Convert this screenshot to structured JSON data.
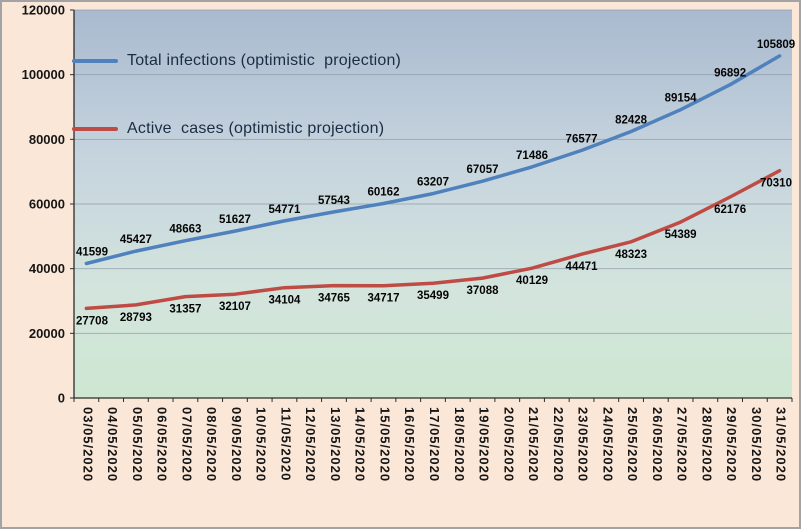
{
  "chart_data": {
    "type": "line",
    "title": "",
    "categories": [
      "03/05/2020",
      "04/05/2020",
      "05/05/2020",
      "06/05/2020",
      "07/05/2020",
      "08/05/2020",
      "09/05/2020",
      "10/05/2020",
      "11/05/2020",
      "12/05/2020",
      "13/05/2020",
      "14/05/2020",
      "15/05/2020",
      "16/05/2020",
      "17/05/2020",
      "18/05/2020",
      "19/05/2020",
      "20/05/2020",
      "21/05/2020",
      "22/05/2020",
      "23/05/2020",
      "24/05/2020",
      "25/05/2020",
      "26/05/2020",
      "27/05/2020",
      "28/05/2020",
      "29/05/2020",
      "30/05/2020",
      "31/05/2020"
    ],
    "label_indices": [
      0,
      2,
      4,
      6,
      8,
      10,
      12,
      14,
      16,
      18,
      20,
      22,
      24,
      26,
      28
    ],
    "series": [
      {
        "name": "Total infections (optimistic  projection)",
        "slug": "total-infections",
        "color": "#4f81bd",
        "label_position": "above",
        "values": [
          41599,
          45427,
          48663,
          51627,
          54771,
          57543,
          60162,
          63207,
          67057,
          71486,
          76577,
          82428,
          89154,
          96892,
          105809
        ]
      },
      {
        "name": "Active  cases (optimistic projection)",
        "slug": "active-cases",
        "color": "#bf4b45",
        "label_position": "below",
        "values": [
          27708,
          28793,
          31357,
          32107,
          34104,
          34765,
          34717,
          35499,
          37088,
          40129,
          44471,
          48323,
          54389,
          62176,
          70310
        ]
      }
    ],
    "ylim": [
      0,
      120000
    ],
    "yticks": [
      0,
      20000,
      40000,
      60000,
      80000,
      100000,
      120000
    ],
    "grid": true,
    "legend_position": "top-left-inside",
    "x_tick_rotation": 90
  },
  "colors": {
    "outer_background": "#fbe7d8",
    "plot_gradient": [
      "#a9bacf",
      "#c6d4de",
      "#d3e4dd",
      "#cde7d1"
    ],
    "gridline": "#8a94a0",
    "axis": "#2b2b2b",
    "label_text": "#161616",
    "data_label_text": "#050505",
    "legend_text": "#1b2d44",
    "border": "#a3a3a6"
  }
}
